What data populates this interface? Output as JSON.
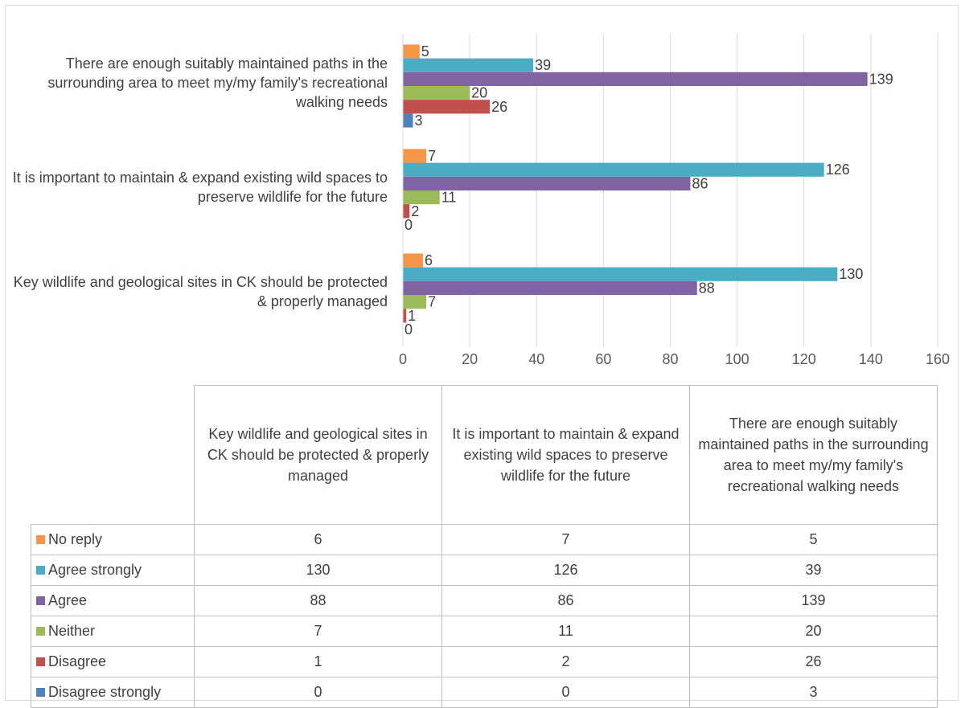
{
  "chart_data": {
    "type": "bar",
    "orientation": "horizontal",
    "categories": [
      "Key wildlife and geological sites in CK should be protected & properly managed",
      "It is important to maintain & expand existing wild spaces to preserve wildlife for the future",
      "There are enough suitably maintained paths in the surrounding area to meet my/my family's recreational walking needs"
    ],
    "series": [
      {
        "name": "No reply",
        "color": "#f79646",
        "values": [
          6,
          7,
          5
        ]
      },
      {
        "name": "Agree strongly",
        "color": "#4bacc6",
        "values": [
          130,
          126,
          39
        ]
      },
      {
        "name": "Agree",
        "color": "#8064a2",
        "values": [
          88,
          86,
          139
        ]
      },
      {
        "name": "Neither",
        "color": "#9bbb59",
        "values": [
          7,
          11,
          20
        ]
      },
      {
        "name": "Disagree",
        "color": "#c0504d",
        "values": [
          1,
          2,
          26
        ]
      },
      {
        "name": "Disagree strongly",
        "color": "#4f81bd",
        "values": [
          0,
          0,
          3
        ]
      }
    ],
    "xlim": [
      0,
      160
    ],
    "xticks": [
      "0",
      "20",
      "40",
      "60",
      "80",
      "100",
      "120",
      "140",
      "160"
    ],
    "grid": true,
    "data_labels": true,
    "legend": "data-table"
  }
}
